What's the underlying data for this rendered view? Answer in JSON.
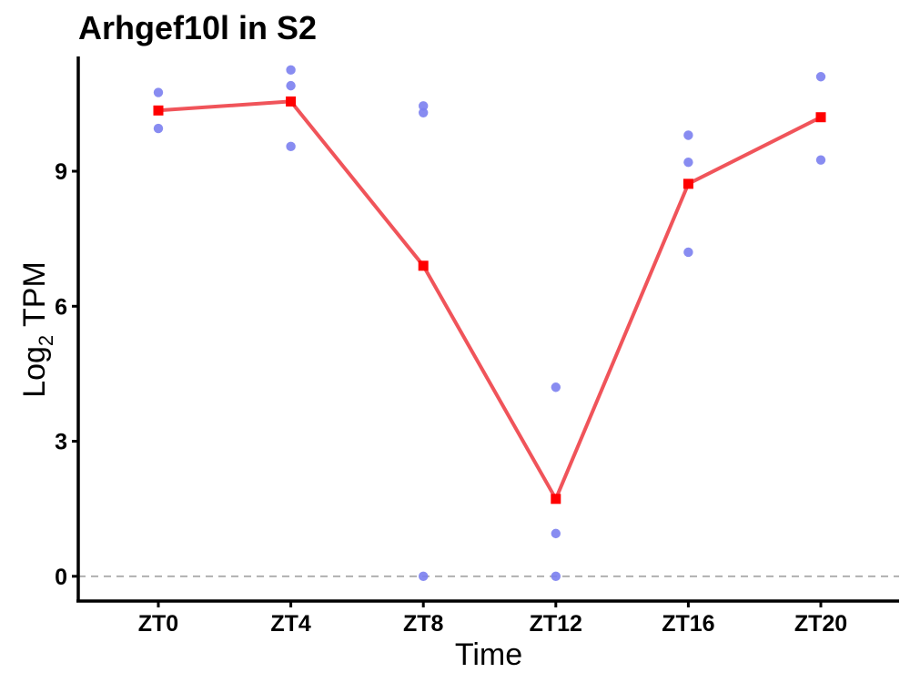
{
  "chart_data": {
    "type": "line",
    "title": "Arhgef10l in S2",
    "xlabel": "Time",
    "ylabel_main": "Log",
    "ylabel_sub": "2",
    "ylabel_rest": " TPM",
    "categories": [
      "ZT0",
      "ZT4",
      "ZT8",
      "ZT12",
      "ZT16",
      "ZT20"
    ],
    "yticks": [
      0,
      3,
      6,
      9
    ],
    "ytick_labels": [
      "0",
      "3",
      "6",
      "9"
    ],
    "ylim": [
      -0.55,
      11.55
    ],
    "reference_line": 0,
    "replicates": [
      {
        "x": "ZT0",
        "y": 10.75
      },
      {
        "x": "ZT0",
        "y": 9.95
      },
      {
        "x": "ZT4",
        "y": 11.25
      },
      {
        "x": "ZT4",
        "y": 10.9
      },
      {
        "x": "ZT4",
        "y": 9.55
      },
      {
        "x": "ZT8",
        "y": 10.45
      },
      {
        "x": "ZT8",
        "y": 10.3
      },
      {
        "x": "ZT8",
        "y": 0.0
      },
      {
        "x": "ZT12",
        "y": 4.2
      },
      {
        "x": "ZT12",
        "y": 0.95
      },
      {
        "x": "ZT12",
        "y": 0.0
      },
      {
        "x": "ZT16",
        "y": 9.8
      },
      {
        "x": "ZT16",
        "y": 9.2
      },
      {
        "x": "ZT16",
        "y": 7.2
      },
      {
        "x": "ZT20",
        "y": 11.1
      },
      {
        "x": "ZT20",
        "y": 9.25
      }
    ],
    "mean_values": [
      10.35,
      10.55,
      6.9,
      1.72,
      8.72,
      10.2
    ],
    "colors": {
      "replicate_points": "#7b7ff0",
      "mean_line": "#f0545a",
      "mean_markers": "#ff0000",
      "reference_line": "#b0b0b0",
      "axis": "#000000"
    },
    "grid": false,
    "legend": "none"
  }
}
